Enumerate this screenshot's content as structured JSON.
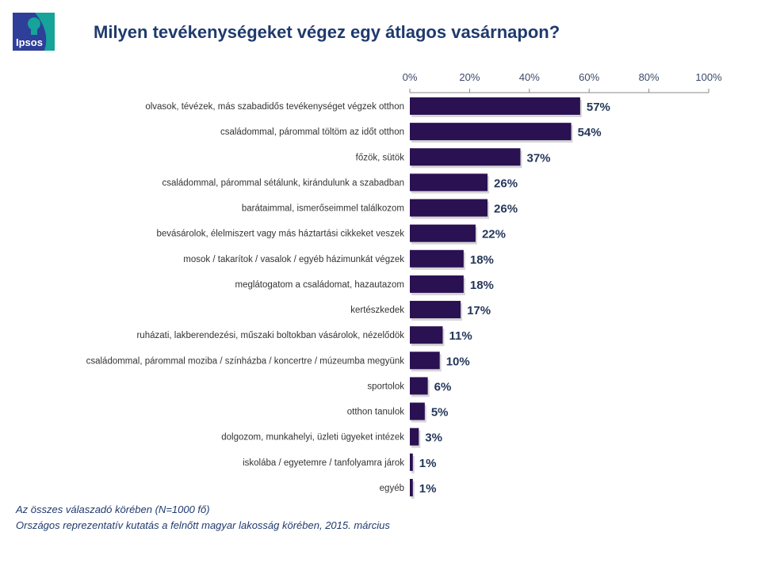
{
  "logo_text": "Ipsos",
  "colors": {
    "bar": "#2a1152",
    "value_label": "#24375a",
    "title": "#1f3a6e",
    "axis": "#8a8a8a"
  },
  "chart_data": {
    "type": "bar",
    "orientation": "horizontal",
    "title": "Milyen tevékenységeket végez egy átlagos vasárnapon?",
    "xlabel": "",
    "ylabel": "",
    "xlim": [
      0,
      100
    ],
    "xticks": [
      "0%",
      "20%",
      "40%",
      "60%",
      "80%",
      "100%"
    ],
    "categories": [
      "olvasok, tévézek, más szabadidős tevékenységet végzek otthon",
      "családommal, párommal töltöm az időt otthon",
      "főzök, sütök",
      "családommal, párommal sétálunk, kirándulunk a szabadban",
      "barátaimmal, ismerőseimmel találkozom",
      "bevásárolok, élelmiszert vagy más háztartási cikkeket veszek",
      "mosok / takarítok / vasalok / egyéb házimunkát végzek",
      "meglátogatom a családomat, hazautazom",
      "kertészkedek",
      "ruházati, lakberendezési, műszaki boltokban vásárolok, nézelődök",
      "családommal, párommal moziba / színházba / koncertre / múzeumba megyünk",
      "sportolok",
      "otthon tanulok",
      "dolgozom, munkahelyi, üzleti ügyeket intézek",
      "iskolába / egyetemre / tanfolyamra járok",
      "egyéb"
    ],
    "values": [
      57,
      54,
      37,
      26,
      26,
      22,
      18,
      18,
      17,
      11,
      10,
      6,
      5,
      3,
      1,
      1
    ],
    "value_labels": [
      "57%",
      "54%",
      "37%",
      "26%",
      "26%",
      "22%",
      "18%",
      "18%",
      "17%",
      "11%",
      "10%",
      "6%",
      "5%",
      "3%",
      "1%",
      "1%"
    ],
    "grid": false,
    "legend": "none"
  },
  "footnotes": [
    "Az összes válaszadó körében (N=1000 fő)",
    "Országos reprezentatív kutatás a felnőtt magyar lakosság körében, 2015. március"
  ]
}
